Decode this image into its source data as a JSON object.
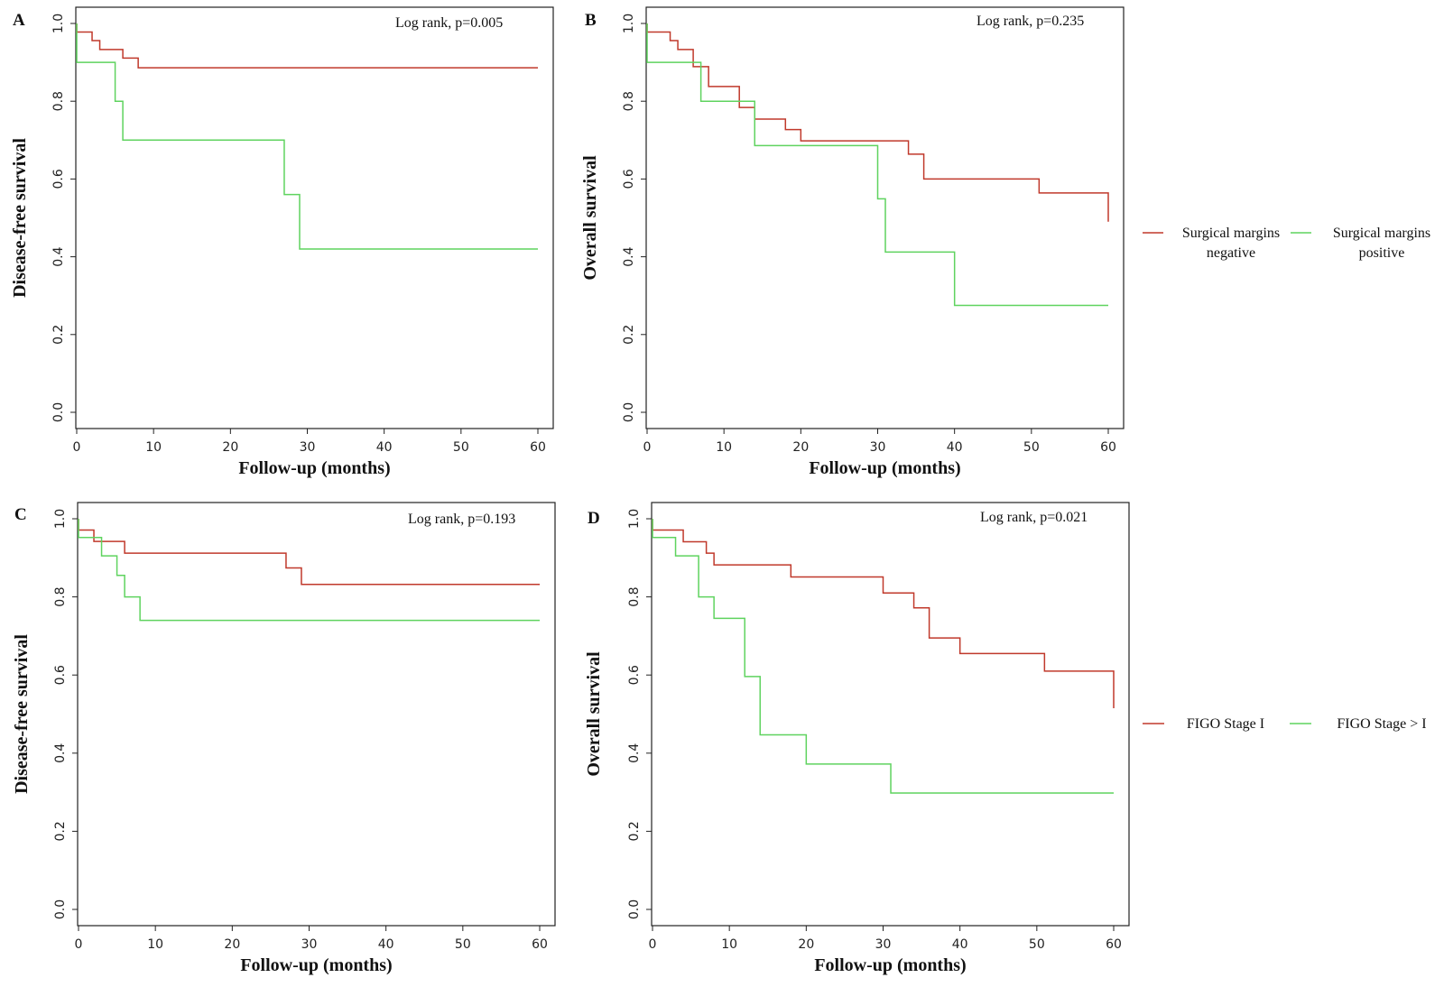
{
  "figure": {
    "legend_groups": [
      {
        "entries": [
          {
            "label_lines": [
              "Surgical margins",
              "negative"
            ],
            "color": "#c0392b"
          },
          {
            "label_lines": [
              "Surgical margins",
              "positive"
            ],
            "color": "#5fd35f"
          }
        ]
      },
      {
        "entries": [
          {
            "label_lines": [
              "FIGO Stage I"
            ],
            "color": "#c0392b"
          },
          {
            "label_lines": [
              "FIGO Stage > I"
            ],
            "color": "#5fd35f"
          }
        ]
      }
    ]
  },
  "chart_data": [
    {
      "panel": "A",
      "type": "line",
      "step": true,
      "annotation": "Log rank, p=0.005",
      "xlabel": "Follow-up (months)",
      "ylabel": "Disease-free survival",
      "xlim": [
        0,
        60
      ],
      "ylim": [
        0,
        1
      ],
      "xticks": [
        0,
        10,
        20,
        30,
        40,
        50,
        60
      ],
      "yticks": [
        "0.0",
        "0.2",
        "0.4",
        "0.6",
        "0.8",
        "1.0"
      ],
      "series": [
        {
          "name": "Surgical margins negative",
          "color": "#c0392b",
          "x": [
            0,
            2,
            3,
            6,
            8,
            60
          ],
          "y": [
            0.978,
            0.956,
            0.933,
            0.911,
            0.886,
            0.886
          ]
        },
        {
          "name": "Surgical margins positive",
          "color": "#5fd35f",
          "x": [
            0,
            5,
            6,
            27,
            29,
            60
          ],
          "y": [
            0.9,
            0.8,
            0.7,
            0.56,
            0.42,
            0.42
          ]
        }
      ]
    },
    {
      "panel": "B",
      "type": "line",
      "step": true,
      "annotation": "Log rank, p=0.235",
      "xlabel": "Follow-up (months)",
      "ylabel": "Overall survival",
      "xlim": [
        0,
        60
      ],
      "ylim": [
        0,
        1
      ],
      "xticks": [
        0,
        10,
        20,
        30,
        40,
        50,
        60
      ],
      "yticks": [
        "0.0",
        "0.2",
        "0.4",
        "0.6",
        "0.8",
        "1.0"
      ],
      "series": [
        {
          "name": "Surgical margins negative",
          "color": "#c0392b",
          "x": [
            0,
            3,
            4,
            6,
            8,
            12,
            14,
            18,
            20,
            34,
            36,
            51,
            60
          ],
          "y": [
            0.978,
            0.956,
            0.933,
            0.889,
            0.838,
            0.784,
            0.754,
            0.727,
            0.698,
            0.664,
            0.6,
            0.564,
            0.49
          ]
        },
        {
          "name": "Surgical margins positive",
          "color": "#5fd35f",
          "x": [
            0,
            7,
            14,
            30,
            31,
            40,
            60
          ],
          "y": [
            0.9,
            0.8,
            0.686,
            0.549,
            0.412,
            0.275,
            0.275
          ]
        }
      ]
    },
    {
      "panel": "C",
      "type": "line",
      "step": true,
      "annotation": "Log rank, p=0.193",
      "xlabel": "Follow-up (months)",
      "ylabel": "Disease-free survival",
      "xlim": [
        0,
        60
      ],
      "ylim": [
        0,
        1
      ],
      "xticks": [
        0,
        10,
        20,
        30,
        40,
        50,
        60
      ],
      "yticks": [
        "0.0",
        "0.2",
        "0.4",
        "0.6",
        "0.8",
        "1.0"
      ],
      "series": [
        {
          "name": "FIGO Stage I",
          "color": "#c0392b",
          "x": [
            0,
            2,
            6,
            27,
            29,
            60
          ],
          "y": [
            0.971,
            0.942,
            0.912,
            0.874,
            0.832,
            0.832
          ]
        },
        {
          "name": "FIGO Stage > I",
          "color": "#5fd35f",
          "x": [
            0,
            3,
            5,
            6,
            8,
            60
          ],
          "y": [
            0.952,
            0.905,
            0.855,
            0.8,
            0.74,
            0.74
          ]
        }
      ]
    },
    {
      "panel": "D",
      "type": "line",
      "step": true,
      "annotation": "Log rank, p=0.021",
      "xlabel": "Follow-up (months)",
      "ylabel": "Overall survival",
      "xlim": [
        0,
        60
      ],
      "ylim": [
        0,
        1
      ],
      "xticks": [
        0,
        10,
        20,
        30,
        40,
        50,
        60
      ],
      "yticks": [
        "0.0",
        "0.2",
        "0.4",
        "0.6",
        "0.8",
        "1.0"
      ],
      "series": [
        {
          "name": "FIGO Stage I",
          "color": "#c0392b",
          "x": [
            0,
            4,
            7,
            8,
            18,
            30,
            34,
            36,
            40,
            51,
            60
          ],
          "y": [
            0.971,
            0.941,
            0.912,
            0.882,
            0.851,
            0.81,
            0.772,
            0.695,
            0.655,
            0.61,
            0.515
          ]
        },
        {
          "name": "FIGO Stage > I",
          "color": "#5fd35f",
          "x": [
            0,
            3,
            6,
            8,
            12,
            14,
            20,
            31,
            60
          ],
          "y": [
            0.952,
            0.905,
            0.8,
            0.745,
            0.596,
            0.447,
            0.372,
            0.298,
            0.298
          ]
        }
      ]
    }
  ]
}
